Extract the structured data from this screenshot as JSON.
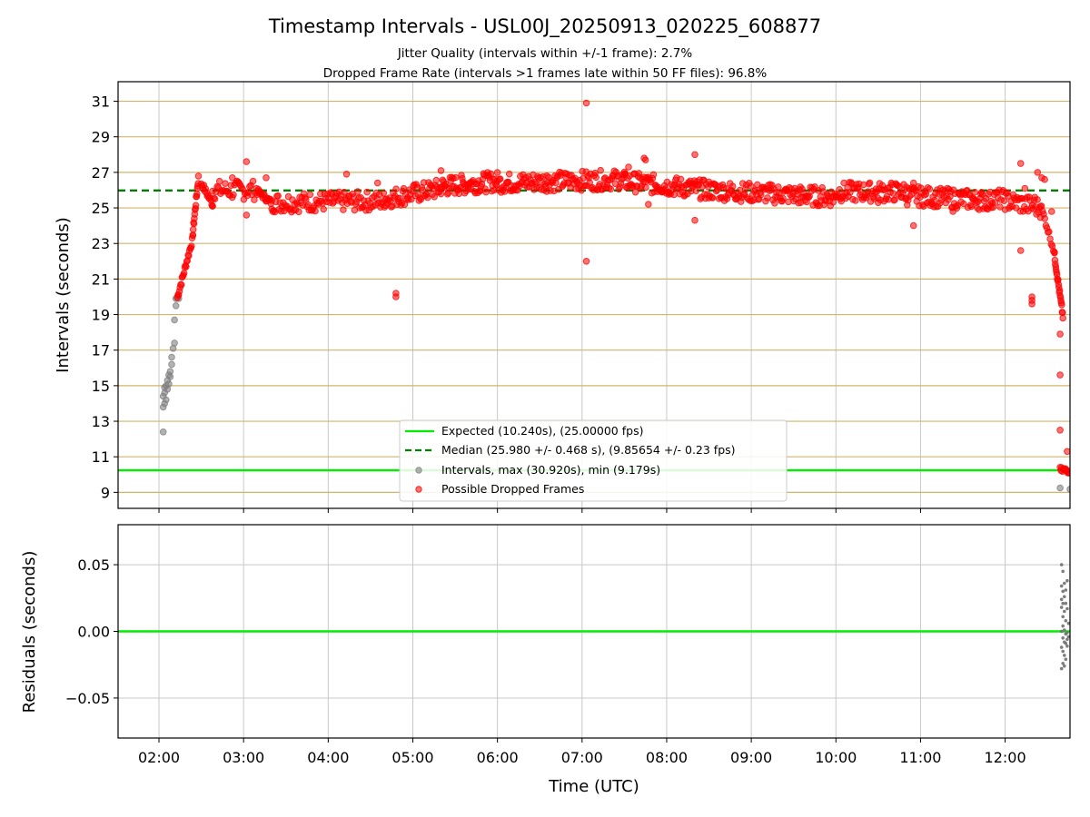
{
  "chart_data": {
    "type": "scatter",
    "title": "Timestamp Intervals - USL00J_20250913_020225_608877",
    "subtitle_1": "Jitter Quality (intervals within +/-1 frame): 2.7%",
    "subtitle_2": "Dropped Frame Rate (intervals >1 frames late within 50 FF files): 96.8%",
    "xlabel": "Time (UTC)",
    "x_ticks": [
      "02:00",
      "03:00",
      "04:00",
      "05:00",
      "06:00",
      "07:00",
      "08:00",
      "09:00",
      "10:00",
      "11:00",
      "12:00"
    ],
    "xlim": [
      "01:31",
      "12:46"
    ],
    "colors": {
      "expected": "#00ee00",
      "median": "#007f00",
      "intervals": "#808080",
      "dropped": "#ff0000",
      "grid_upper": "#d4b46a",
      "grid": "#c8c8c8"
    },
    "upper": {
      "ylabel": "Intervals (seconds)",
      "y_ticks": [
        "9",
        "11",
        "13",
        "15",
        "17",
        "19",
        "21",
        "23",
        "25",
        "27",
        "29",
        "31"
      ],
      "ylim": [
        8.1,
        32.1
      ],
      "expected_line": 10.24,
      "median_line": 25.98,
      "legend_location": "lower center",
      "legend": {
        "expected": "Expected (10.240s), (25.00000 fps)",
        "median": "Median (25.980 +/- 0.468 s), (9.85654 +/- 0.23 fps)",
        "intervals": "Intervals, max (30.920s), min (9.179s)",
        "dropped": "Possible Dropped Frames"
      },
      "intervals_points": [
        [
          "02:03",
          12.4
        ],
        [
          "02:03",
          13.8
        ],
        [
          "02:04",
          14.0
        ],
        [
          "02:03",
          14.4
        ],
        [
          "02:04",
          14.6
        ],
        [
          "02:04",
          14.9
        ],
        [
          "02:05",
          14.2
        ],
        [
          "02:05",
          15.0
        ],
        [
          "02:06",
          15.3
        ],
        [
          "02:06",
          14.8
        ],
        [
          "02:07",
          15.6
        ],
        [
          "02:07",
          15.1
        ],
        [
          "02:08",
          15.5
        ],
        [
          "02:08",
          15.8
        ],
        [
          "02:09",
          16.2
        ],
        [
          "02:09",
          16.6
        ],
        [
          "02:10",
          17.1
        ],
        [
          "02:11",
          17.4
        ],
        [
          "02:11",
          18.7
        ],
        [
          "02:12",
          19.5
        ],
        [
          "02:12",
          19.9
        ],
        [
          "02:13",
          20.0
        ],
        [
          "02:14",
          19.9
        ],
        [
          "12:39",
          9.25
        ],
        [
          "12:46",
          9.18
        ]
      ],
      "dropped_segments": [
        {
          "from": [
            "02:13",
            19.95
          ],
          "to": [
            "02:24",
            23.3
          ],
          "n": 24
        },
        {
          "from": [
            "02:24",
            23.6
          ],
          "to": [
            "02:28",
            26.7
          ],
          "n": 16
        },
        {
          "from": [
            "02:30",
            26.4
          ],
          "to": [
            "02:38",
            25.2
          ],
          "n": 14
        },
        {
          "from": [
            "02:38",
            26.0
          ],
          "to": [
            "03:10",
            26.0
          ],
          "n": 40
        },
        {
          "from": [
            "03:10",
            25.9
          ],
          "to": [
            "03:20",
            25.3
          ],
          "n": 18
        },
        {
          "from": [
            "03:20",
            25.3
          ],
          "to": [
            "04:40",
            25.4
          ],
          "n": 110
        },
        {
          "from": [
            "04:40",
            25.5
          ],
          "to": [
            "05:20",
            26.1
          ],
          "n": 60
        },
        {
          "from": [
            "05:20",
            26.2
          ],
          "to": [
            "06:00",
            26.5
          ],
          "n": 70
        },
        {
          "from": [
            "06:00",
            26.4
          ],
          "to": [
            "07:30",
            26.6
          ],
          "n": 140
        },
        {
          "from": [
            "07:30",
            26.5
          ],
          "to": [
            "08:30",
            26.0
          ],
          "n": 100
        },
        {
          "from": [
            "08:30",
            26.0
          ],
          "to": [
            "10:00",
            25.6
          ],
          "n": 140
        },
        {
          "from": [
            "10:00",
            25.9
          ],
          "to": [
            "10:50",
            25.9
          ],
          "n": 80
        },
        {
          "from": [
            "10:50",
            25.7
          ],
          "to": [
            "11:50",
            25.4
          ],
          "n": 100
        },
        {
          "from": [
            "11:50",
            25.6
          ],
          "to": [
            "12:25",
            25.0
          ],
          "n": 50
        },
        {
          "from": [
            "12:25",
            25.2
          ],
          "to": [
            "12:35",
            22.5
          ],
          "n": 14
        },
        {
          "from": [
            "12:35",
            22.3
          ],
          "to": [
            "12:41",
            18.9
          ],
          "n": 22
        },
        {
          "from": [
            "12:39",
            10.24
          ],
          "to": [
            "12:46",
            10.24
          ],
          "n": 14
        }
      ],
      "dropped_outliers": [
        [
          "02:38",
          25.1
        ],
        [
          "02:52",
          26.7
        ],
        [
          "03:02",
          27.6
        ],
        [
          "03:02",
          24.6
        ],
        [
          "03:16",
          26.7
        ],
        [
          "03:17",
          25.5
        ],
        [
          "04:13",
          26.9
        ],
        [
          "04:35",
          26.4
        ],
        [
          "04:48",
          20.2
        ],
        [
          "04:48",
          20.0
        ],
        [
          "05:20",
          27.1
        ],
        [
          "06:35",
          26.8
        ],
        [
          "07:03",
          30.9
        ],
        [
          "07:03",
          22.0
        ],
        [
          "07:33",
          27.3
        ],
        [
          "07:44",
          27.8
        ],
        [
          "07:45",
          27.7
        ],
        [
          "07:47",
          25.2
        ],
        [
          "08:20",
          28.0
        ],
        [
          "08:20",
          24.3
        ],
        [
          "09:35",
          25.3
        ],
        [
          "10:30",
          25.3
        ],
        [
          "10:55",
          26.4
        ],
        [
          "10:55",
          24.0
        ],
        [
          "11:23",
          24.8
        ],
        [
          "12:11",
          27.5
        ],
        [
          "12:11",
          22.6
        ],
        [
          "12:14",
          26.1
        ],
        [
          "12:19",
          20.0
        ],
        [
          "12:19",
          19.8
        ],
        [
          "12:19",
          19.6
        ],
        [
          "12:21",
          25.6
        ],
        [
          "12:23",
          27.0
        ],
        [
          "12:26",
          26.7
        ],
        [
          "12:28",
          26.6
        ],
        [
          "12:33",
          24.8
        ],
        [
          "12:39",
          17.9
        ],
        [
          "12:39",
          15.6
        ],
        [
          "12:39",
          12.5
        ],
        [
          "12:44",
          11.3
        ]
      ]
    },
    "lower": {
      "ylabel": "Residuals (seconds)",
      "y_ticks": [
        "0.05",
        "0.00",
        "−0.05"
      ],
      "y_tick_values": [
        0.05,
        0.0,
        -0.05
      ],
      "ylim": [
        -0.08,
        0.08
      ],
      "zero_line": 0.0,
      "residual_points": [
        [
          "12:40",
          0.05
        ],
        [
          "12:41",
          0.045
        ],
        [
          "12:40",
          0.034
        ],
        [
          "12:41",
          0.03
        ],
        [
          "12:42",
          0.036
        ],
        [
          "12:40",
          0.024
        ],
        [
          "12:41",
          0.021
        ],
        [
          "12:42",
          0.026
        ],
        [
          "12:43",
          0.031
        ],
        [
          "12:40",
          0.018
        ],
        [
          "12:42",
          0.015
        ],
        [
          "12:43",
          0.021
        ],
        [
          "12:41",
          0.011
        ],
        [
          "12:44",
          0.017
        ],
        [
          "12:43",
          0.008
        ],
        [
          "12:41",
          0.004
        ],
        [
          "12:42",
          0.001
        ],
        [
          "12:40",
          0.0
        ],
        [
          "12:43",
          -0.002
        ],
        [
          "12:44",
          -0.001
        ],
        [
          "12:41",
          -0.005
        ],
        [
          "12:42",
          -0.008
        ],
        [
          "12:43",
          -0.009
        ],
        [
          "12:44",
          -0.006
        ],
        [
          "12:40",
          -0.012
        ],
        [
          "12:41",
          -0.015
        ],
        [
          "12:42",
          -0.018
        ],
        [
          "12:43",
          -0.021
        ],
        [
          "12:41",
          -0.024
        ],
        [
          "12:40",
          -0.028
        ],
        [
          "12:42",
          -0.026
        ],
        [
          "12:44",
          -0.011
        ],
        [
          "12:45",
          0.006
        ],
        [
          "12:45",
          -0.004
        ],
        [
          "12:44",
          0.038
        ]
      ]
    }
  }
}
